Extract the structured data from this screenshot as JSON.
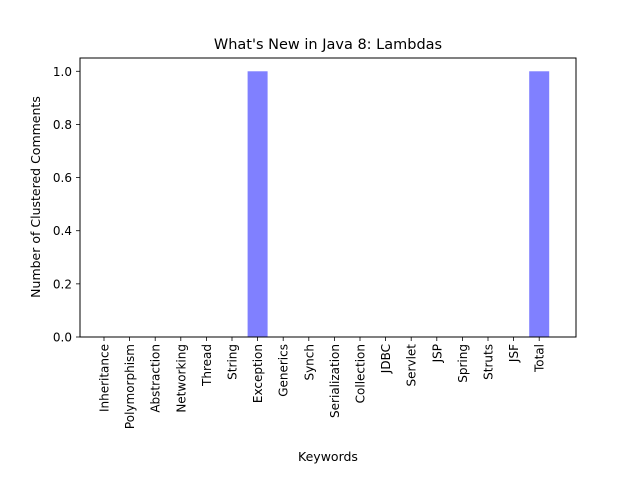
{
  "chart_data": {
    "type": "bar",
    "title": "What's New in Java 8: Lambdas",
    "xlabel": "Keywords",
    "ylabel": "Number of Clustered Comments",
    "categories": [
      "Inheritance",
      "Polymorphism",
      "Abstraction",
      "Networking",
      "Thread",
      "String",
      "Exception",
      "Generics",
      "Synch",
      "Serialization",
      "Collection",
      "JDBC",
      "Servlet",
      "JSP",
      "Spring",
      "Struts",
      "JSF",
      "Total"
    ],
    "values": [
      0,
      0,
      0,
      0,
      0,
      0,
      1,
      0,
      0,
      0,
      0,
      0,
      0,
      0,
      0,
      0,
      0,
      1
    ],
    "ylim": [
      0,
      1.05
    ],
    "yticks": [
      0.0,
      0.2,
      0.4,
      0.6,
      0.8,
      1.0
    ],
    "ytick_labels": [
      "0.0",
      "0.2",
      "0.4",
      "0.6",
      "0.8",
      "1.0"
    ],
    "bar_color": "#8080ff",
    "grid": false,
    "legend": "none"
  }
}
